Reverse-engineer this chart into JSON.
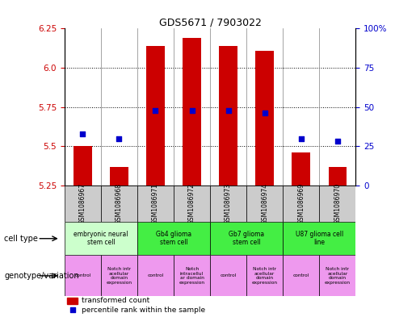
{
  "title": "GDS5671 / 7903022",
  "samples": [
    "GSM1086967",
    "GSM1086968",
    "GSM1086971",
    "GSM1086972",
    "GSM1086973",
    "GSM1086974",
    "GSM1086969",
    "GSM1086970"
  ],
  "transformed_counts": [
    5.5,
    5.37,
    6.14,
    6.19,
    6.14,
    6.11,
    5.46,
    5.37
  ],
  "percentile_ranks": [
    33,
    30,
    48,
    48,
    48,
    46,
    30,
    28
  ],
  "ylim_left": [
    5.25,
    6.25
  ],
  "ylim_right": [
    0,
    100
  ],
  "yticks_left": [
    5.25,
    5.5,
    5.75,
    6.0,
    6.25
  ],
  "yticks_right": [
    0,
    25,
    50,
    75,
    100
  ],
  "bar_color": "#cc0000",
  "dot_color": "#0000cc",
  "bar_bottom": 5.25,
  "cell_types": [
    {
      "label": "embryonic neural\nstem cell",
      "start": 0,
      "end": 2,
      "color": "#ccffcc"
    },
    {
      "label": "Gb4 glioma\nstem cell",
      "start": 2,
      "end": 4,
      "color": "#44ee44"
    },
    {
      "label": "Gb7 glioma\nstem cell",
      "start": 4,
      "end": 6,
      "color": "#44ee44"
    },
    {
      "label": "U87 glioma cell\nline",
      "start": 6,
      "end": 8,
      "color": "#44ee44"
    }
  ],
  "genotypes": [
    {
      "label": "control",
      "start": 0,
      "end": 1,
      "color": "#ee99ee"
    },
    {
      "label": "Notch intr\nacellular\ndomain\nexpression",
      "start": 1,
      "end": 2,
      "color": "#ee99ee"
    },
    {
      "label": "control",
      "start": 2,
      "end": 3,
      "color": "#ee99ee"
    },
    {
      "label": "Notch\nintracellul\nar domain\nexpression",
      "start": 3,
      "end": 4,
      "color": "#ee99ee"
    },
    {
      "label": "control",
      "start": 4,
      "end": 5,
      "color": "#ee99ee"
    },
    {
      "label": "Notch intr\nacellular\ndomain\nexpression",
      "start": 5,
      "end": 6,
      "color": "#ee99ee"
    },
    {
      "label": "control",
      "start": 6,
      "end": 7,
      "color": "#ee99ee"
    },
    {
      "label": "Notch intr\nacellular\ndomain\nexpression",
      "start": 7,
      "end": 8,
      "color": "#ee99ee"
    }
  ],
  "legend_bar_label": "transformed count",
  "legend_dot_label": "percentile rank within the sample",
  "xlabel_cell_type": "cell type",
  "xlabel_genotype": "genotype/variation",
  "tick_label_color_left": "#cc0000",
  "tick_label_color_right": "#0000cc",
  "sample_box_color": "#cccccc",
  "fig_width": 5.15,
  "fig_height": 3.93,
  "dpi": 100
}
